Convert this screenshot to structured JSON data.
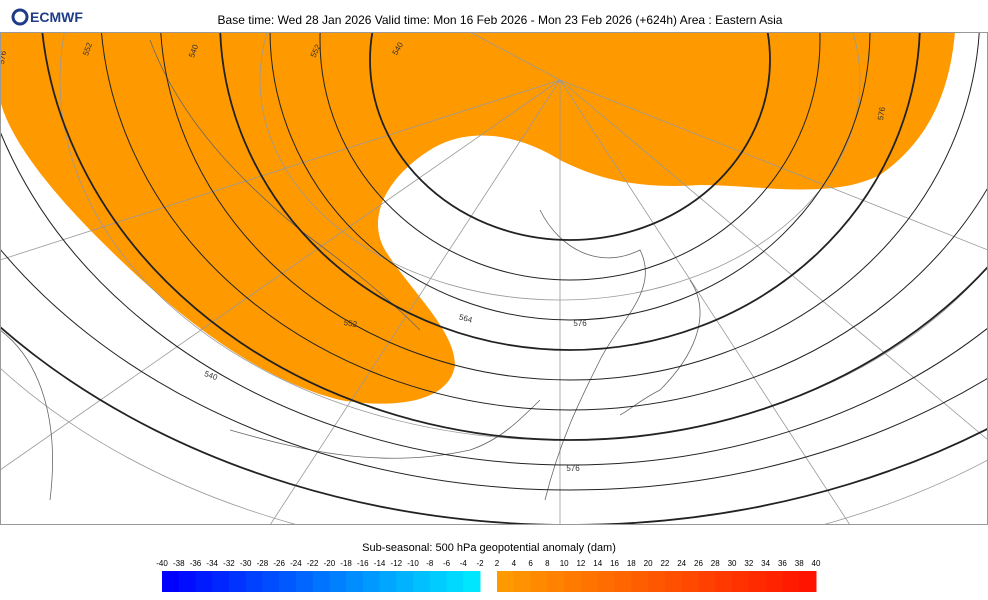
{
  "header": {
    "logo": "ECMWF",
    "title": "Base time: Wed 28 Jan 2026 Valid time: Mon 16 Feb 2026 - Mon 23 Feb 2026 (+624h) Area : Eastern Asia"
  },
  "map": {
    "contour_labels": [
      576,
      552,
      540,
      552,
      540,
      576,
      552,
      564,
      576,
      576,
      540
    ]
  },
  "colorbar": {
    "title": "Sub-seasonal: 500 hPa geopotential anomaly (dam)",
    "ticks": [
      -40,
      -38,
      -36,
      -34,
      -32,
      -30,
      -28,
      -26,
      -24,
      -22,
      -20,
      -18,
      -16,
      -14,
      -12,
      -10,
      -8,
      -6,
      -4,
      -2,
      2,
      4,
      6,
      8,
      10,
      12,
      14,
      16,
      18,
      20,
      22,
      24,
      26,
      28,
      30,
      32,
      34,
      36,
      38,
      40
    ]
  }
}
